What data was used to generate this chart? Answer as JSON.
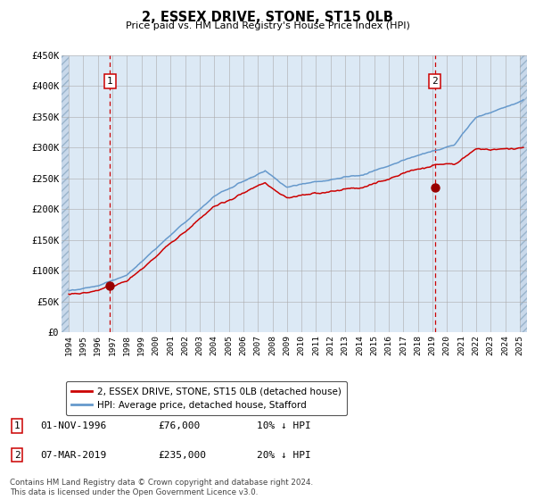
{
  "title": "2, ESSEX DRIVE, STONE, ST15 0LB",
  "subtitle": "Price paid vs. HM Land Registry's House Price Index (HPI)",
  "background_color": "#dce9f5",
  "plot_bg_color": "#dce9f5",
  "grid_color": "#aaaaaa",
  "red_line_color": "#cc0000",
  "blue_line_color": "#6699cc",
  "marker_color": "#990000",
  "vline_color": "#cc0000",
  "legend_label_red": "2, ESSEX DRIVE, STONE, ST15 0LB (detached house)",
  "legend_label_blue": "HPI: Average price, detached house, Stafford",
  "annotation1_year": 1996.83,
  "annotation1_value": 76000,
  "annotation2_year": 2019.17,
  "annotation2_value": 235000,
  "annotation1_date": "01-NOV-1996",
  "annotation1_price": "£76,000",
  "annotation1_hpi": "10% ↓ HPI",
  "annotation2_date": "07-MAR-2019",
  "annotation2_price": "£235,000",
  "annotation2_hpi": "20% ↓ HPI",
  "ylim": [
    0,
    450000
  ],
  "yticks": [
    0,
    50000,
    100000,
    150000,
    200000,
    250000,
    300000,
    350000,
    400000,
    450000
  ],
  "ytick_labels": [
    "£0",
    "£50K",
    "£100K",
    "£150K",
    "£200K",
    "£250K",
    "£300K",
    "£350K",
    "£400K",
    "£450K"
  ],
  "xlim_start": 1993.5,
  "xlim_end": 2025.5,
  "footer": "Contains HM Land Registry data © Crown copyright and database right 2024.\nThis data is licensed under the Open Government Licence v3.0."
}
